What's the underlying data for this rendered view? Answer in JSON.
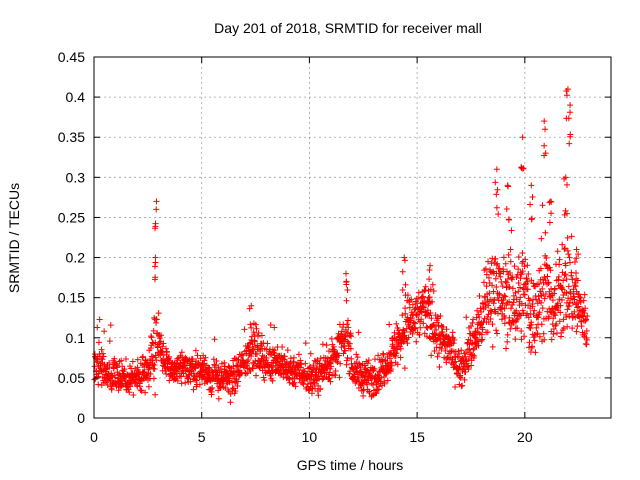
{
  "chart_data": {
    "type": "scatter",
    "title": "Day 201 of 2018, SRMTID for receiver mall",
    "xlabel": "GPS time / hours",
    "ylabel": "SRMTID / TECUs",
    "xlim": [
      0,
      24
    ],
    "ylim": [
      0,
      0.45
    ],
    "xticks": [
      0,
      5,
      10,
      15,
      20
    ],
    "xtick_labels": [
      "0",
      "5",
      "10",
      "15",
      "20"
    ],
    "yticks": [
      0,
      0.05,
      0.1,
      0.15,
      0.2,
      0.25,
      0.3,
      0.35,
      0.4,
      0.45
    ],
    "ytick_labels": [
      "0",
      "0.05",
      "0.1",
      "0.15",
      "0.2",
      "0.25",
      "0.3",
      "0.35",
      "0.4",
      "0.45"
    ],
    "grid": true,
    "marker": "+",
    "color": "#ff0000",
    "baseline_profile": {
      "description": "approximate median SRMTID vs GPS hour, with sample spread",
      "x": [
        0,
        0.5,
        1,
        1.5,
        2,
        2.5,
        2.8,
        3,
        3.3,
        3.5,
        4,
        4.5,
        5,
        5.5,
        6,
        6.5,
        7,
        7.3,
        7.6,
        8,
        8.5,
        9,
        9.5,
        10,
        10.3,
        10.6,
        11,
        11.5,
        11.8,
        12,
        12.5,
        13,
        13.5,
        14,
        14.3,
        14.6,
        15,
        15.3,
        15.6,
        16,
        16.5,
        17,
        17.5,
        18,
        18.3,
        18.6,
        19,
        19.3,
        19.6,
        20,
        20.3,
        20.6,
        21,
        21.3,
        21.6,
        22,
        22.3,
        22.6,
        22.9
      ],
      "y": [
        0.07,
        0.06,
        0.05,
        0.05,
        0.05,
        0.06,
        0.1,
        0.09,
        0.07,
        0.06,
        0.06,
        0.06,
        0.06,
        0.05,
        0.05,
        0.05,
        0.07,
        0.09,
        0.08,
        0.07,
        0.07,
        0.06,
        0.06,
        0.05,
        0.05,
        0.06,
        0.07,
        0.09,
        0.1,
        0.06,
        0.05,
        0.05,
        0.06,
        0.09,
        0.1,
        0.12,
        0.12,
        0.14,
        0.12,
        0.1,
        0.09,
        0.06,
        0.09,
        0.12,
        0.15,
        0.17,
        0.14,
        0.16,
        0.14,
        0.16,
        0.12,
        0.14,
        0.16,
        0.13,
        0.15,
        0.17,
        0.15,
        0.13,
        0.11
      ],
      "spread": [
        0.025,
        0.02,
        0.02,
        0.02,
        0.02,
        0.02,
        0.05,
        0.03,
        0.02,
        0.02,
        0.02,
        0.02,
        0.02,
        0.02,
        0.02,
        0.02,
        0.025,
        0.03,
        0.025,
        0.02,
        0.02,
        0.02,
        0.02,
        0.02,
        0.02,
        0.02,
        0.025,
        0.03,
        0.03,
        0.02,
        0.02,
        0.02,
        0.02,
        0.025,
        0.03,
        0.035,
        0.035,
        0.035,
        0.03,
        0.03,
        0.025,
        0.02,
        0.03,
        0.04,
        0.05,
        0.06,
        0.05,
        0.06,
        0.05,
        0.06,
        0.05,
        0.05,
        0.06,
        0.05,
        0.06,
        0.06,
        0.05,
        0.04,
        0.03
      ]
    },
    "notable_peaks": [
      {
        "x": 2.9,
        "y": 0.27
      },
      {
        "x": 2.85,
        "y": 0.2
      },
      {
        "x": 7.3,
        "y": 0.14
      },
      {
        "x": 11.7,
        "y": 0.18
      },
      {
        "x": 14.4,
        "y": 0.2
      },
      {
        "x": 15.6,
        "y": 0.19
      },
      {
        "x": 18.7,
        "y": 0.31
      },
      {
        "x": 19.2,
        "y": 0.29
      },
      {
        "x": 19.9,
        "y": 0.35
      },
      {
        "x": 20.3,
        "y": 0.29
      },
      {
        "x": 20.9,
        "y": 0.37
      },
      {
        "x": 21.2,
        "y": 0.27
      },
      {
        "x": 22.0,
        "y": 0.41
      },
      {
        "x": 22.1,
        "y": 0.39
      },
      {
        "x": 21.9,
        "y": 0.3
      },
      {
        "x": 22.4,
        "y": 0.21
      }
    ],
    "sample_step_hours": 0.011,
    "data_end_hour": 22.9
  }
}
